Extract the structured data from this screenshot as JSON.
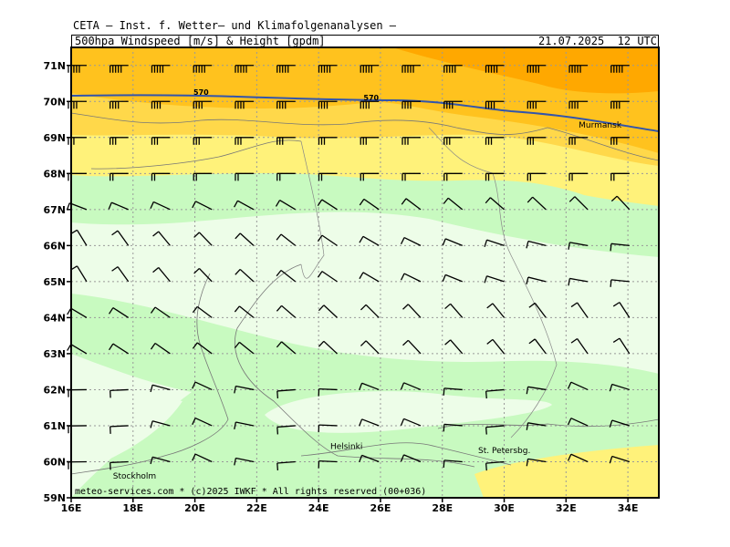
{
  "header": {
    "title": "CETA – Inst. f. Wetter– und Klimafolgenanalysen –",
    "parameter": "500hpa_Windspeed_[m/s]_&_Height_[gpdm]",
    "valid_time": "21.07.2025  12 UTC"
  },
  "footer": "meteo-services.com * (c)2025 IWKF * All rights reserved (00+036)",
  "map": {
    "lon_range": [
      16,
      35
    ],
    "lat_range": [
      59,
      71.5
    ],
    "lon_ticks": [
      "16E",
      "18E",
      "20E",
      "22E",
      "24E",
      "26E",
      "28E",
      "30E",
      "32E",
      "34E"
    ],
    "lat_ticks": [
      "59N",
      "60N",
      "61N",
      "62N",
      "63N",
      "64N",
      "65N",
      "66N",
      "67N",
      "68N",
      "69N",
      "70N",
      "71N"
    ],
    "grid": "dotted",
    "cities": [
      {
        "name": "Murmansk",
        "lon": 33.1,
        "lat": 68.97
      },
      {
        "name": "Helsinki",
        "lon": 24.9,
        "lat": 60.2
      },
      {
        "name": "Stockholm",
        "lon": 18.05,
        "lat": 59.33
      },
      {
        "name": "St. Petersbg.",
        "lon": 30.3,
        "lat": 59.94
      }
    ],
    "height_contour": {
      "value": "570",
      "label_positions_lon": [
        20.2,
        25.7
      ],
      "color": "#3355aa"
    },
    "colors": {
      "wind_0_5": "#edfde8",
      "wind_5_10": "#c8fac0",
      "wind_10_15": "#fff27a",
      "wind_15_20": "#ffd84a",
      "wind_20_25": "#ffc21e",
      "wind_25_30": "#ffa800"
    }
  }
}
